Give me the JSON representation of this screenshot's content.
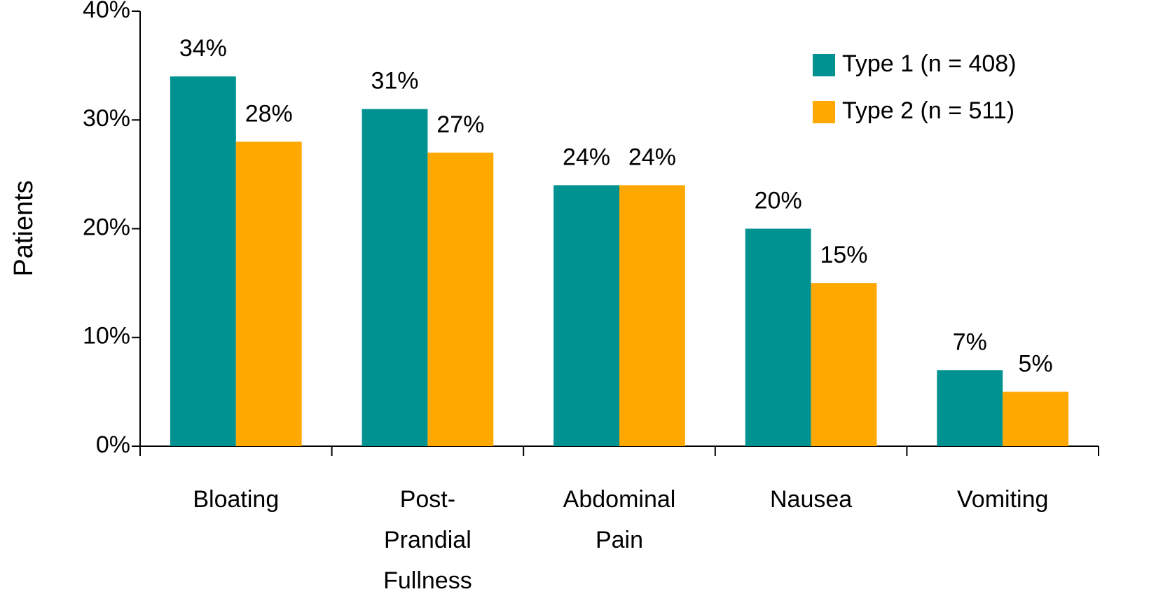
{
  "chart_data": {
    "type": "bar",
    "y_label": "Patients",
    "categories": [
      "Bloating",
      "Post-Prandial Fullness",
      "Abdominal Pain",
      "Nausea",
      "Vomiting"
    ],
    "series": [
      {
        "name": "Type 1 (n = 408)",
        "color": "#009290",
        "values": [
          34,
          31,
          24,
          20,
          7
        ],
        "value_labels": [
          "34%",
          "31%",
          "24%",
          "20%",
          "7%"
        ]
      },
      {
        "name": "Type 2 (n = 511)",
        "color": "#FFA800",
        "values": [
          28,
          27,
          24,
          15,
          5
        ],
        "value_labels": [
          "28%",
          "27%",
          "24%",
          "15%",
          "5%"
        ]
      }
    ],
    "ylim": [
      0,
      40
    ],
    "yticks": [
      {
        "value": 0,
        "label": "0%"
      },
      {
        "value": 10,
        "label": "10%"
      },
      {
        "value": 20,
        "label": "20%"
      },
      {
        "value": 30,
        "label": "30%"
      },
      {
        "value": 40,
        "label": "40%"
      }
    ],
    "legend": "top-right"
  }
}
